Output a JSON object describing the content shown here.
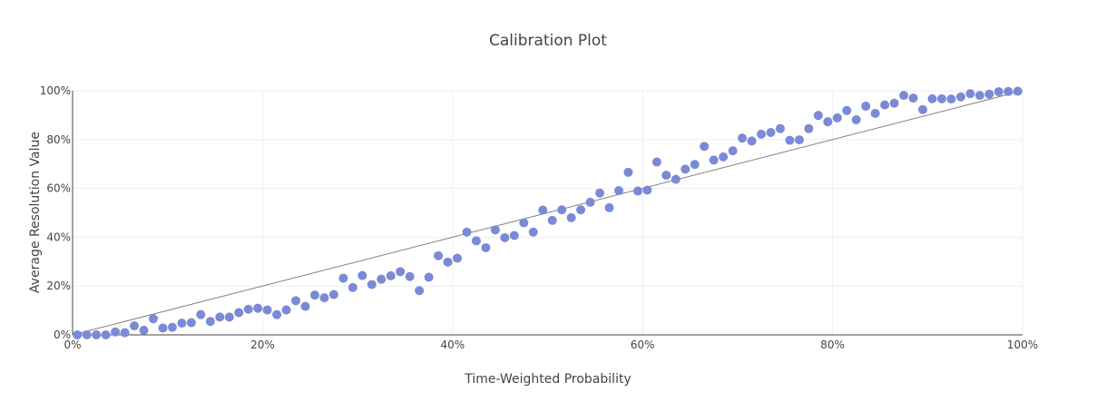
{
  "chart_data": {
    "type": "scatter",
    "title": "Calibration Plot",
    "xlabel": "Time-Weighted Probability",
    "ylabel": "Average Resolution Value",
    "xlim": [
      0,
      1
    ],
    "ylim": [
      0,
      1
    ],
    "x_ticks": [
      "0%",
      "20%",
      "40%",
      "60%",
      "80%",
      "100%"
    ],
    "y_ticks": [
      "0%",
      "20%",
      "40%",
      "60%",
      "80%",
      "100%"
    ],
    "grid": true,
    "marker_color": "#7b8ad6",
    "reference_line_color": "#808080",
    "reference_line": [
      [
        0,
        0
      ],
      [
        1,
        1
      ]
    ],
    "series": [
      {
        "x": [
          0.005,
          0.015,
          0.025,
          0.035,
          0.045,
          0.055,
          0.065,
          0.075,
          0.085,
          0.095,
          0.105,
          0.115,
          0.125,
          0.135,
          0.145,
          0.155,
          0.165,
          0.175,
          0.185,
          0.195,
          0.205,
          0.215,
          0.225,
          0.235,
          0.245,
          0.255,
          0.265,
          0.275,
          0.285,
          0.295,
          0.305,
          0.315,
          0.325,
          0.335,
          0.345,
          0.355,
          0.365,
          0.375,
          0.385,
          0.395,
          0.405,
          0.415,
          0.425,
          0.435,
          0.445,
          0.455,
          0.465,
          0.475,
          0.485,
          0.495,
          0.505,
          0.515,
          0.525,
          0.535,
          0.545,
          0.555,
          0.565,
          0.575,
          0.585,
          0.595,
          0.605,
          0.615,
          0.625,
          0.635,
          0.645,
          0.655,
          0.665,
          0.675,
          0.685,
          0.695,
          0.705,
          0.715,
          0.725,
          0.735,
          0.745,
          0.755,
          0.765,
          0.775,
          0.785,
          0.795,
          0.805,
          0.815,
          0.825,
          0.835,
          0.845,
          0.855,
          0.865,
          0.875,
          0.885,
          0.895,
          0.905,
          0.915,
          0.925,
          0.935,
          0.945,
          0.955,
          0.965,
          0.975,
          0.985,
          0.995
        ],
        "y": [
          0.0,
          0.0,
          0.0,
          0.0,
          0.012,
          0.009,
          0.037,
          0.019,
          0.066,
          0.028,
          0.031,
          0.048,
          0.05,
          0.083,
          0.055,
          0.073,
          0.073,
          0.091,
          0.105,
          0.109,
          0.102,
          0.083,
          0.102,
          0.14,
          0.117,
          0.163,
          0.152,
          0.165,
          0.232,
          0.194,
          0.243,
          0.206,
          0.228,
          0.242,
          0.259,
          0.239,
          0.181,
          0.236,
          0.324,
          0.298,
          0.314,
          0.421,
          0.385,
          0.357,
          0.43,
          0.398,
          0.407,
          0.459,
          0.421,
          0.511,
          0.469,
          0.512,
          0.48,
          0.512,
          0.543,
          0.581,
          0.521,
          0.591,
          0.666,
          0.589,
          0.593,
          0.708,
          0.654,
          0.637,
          0.679,
          0.698,
          0.772,
          0.716,
          0.729,
          0.754,
          0.806,
          0.794,
          0.822,
          0.829,
          0.845,
          0.797,
          0.799,
          0.845,
          0.899,
          0.873,
          0.889,
          0.919,
          0.881,
          0.937,
          0.907,
          0.942,
          0.949,
          0.981,
          0.97,
          0.923,
          0.967,
          0.967,
          0.966,
          0.975,
          0.988,
          0.981,
          0.986,
          0.996,
          0.997,
          0.998
        ]
      }
    ]
  }
}
